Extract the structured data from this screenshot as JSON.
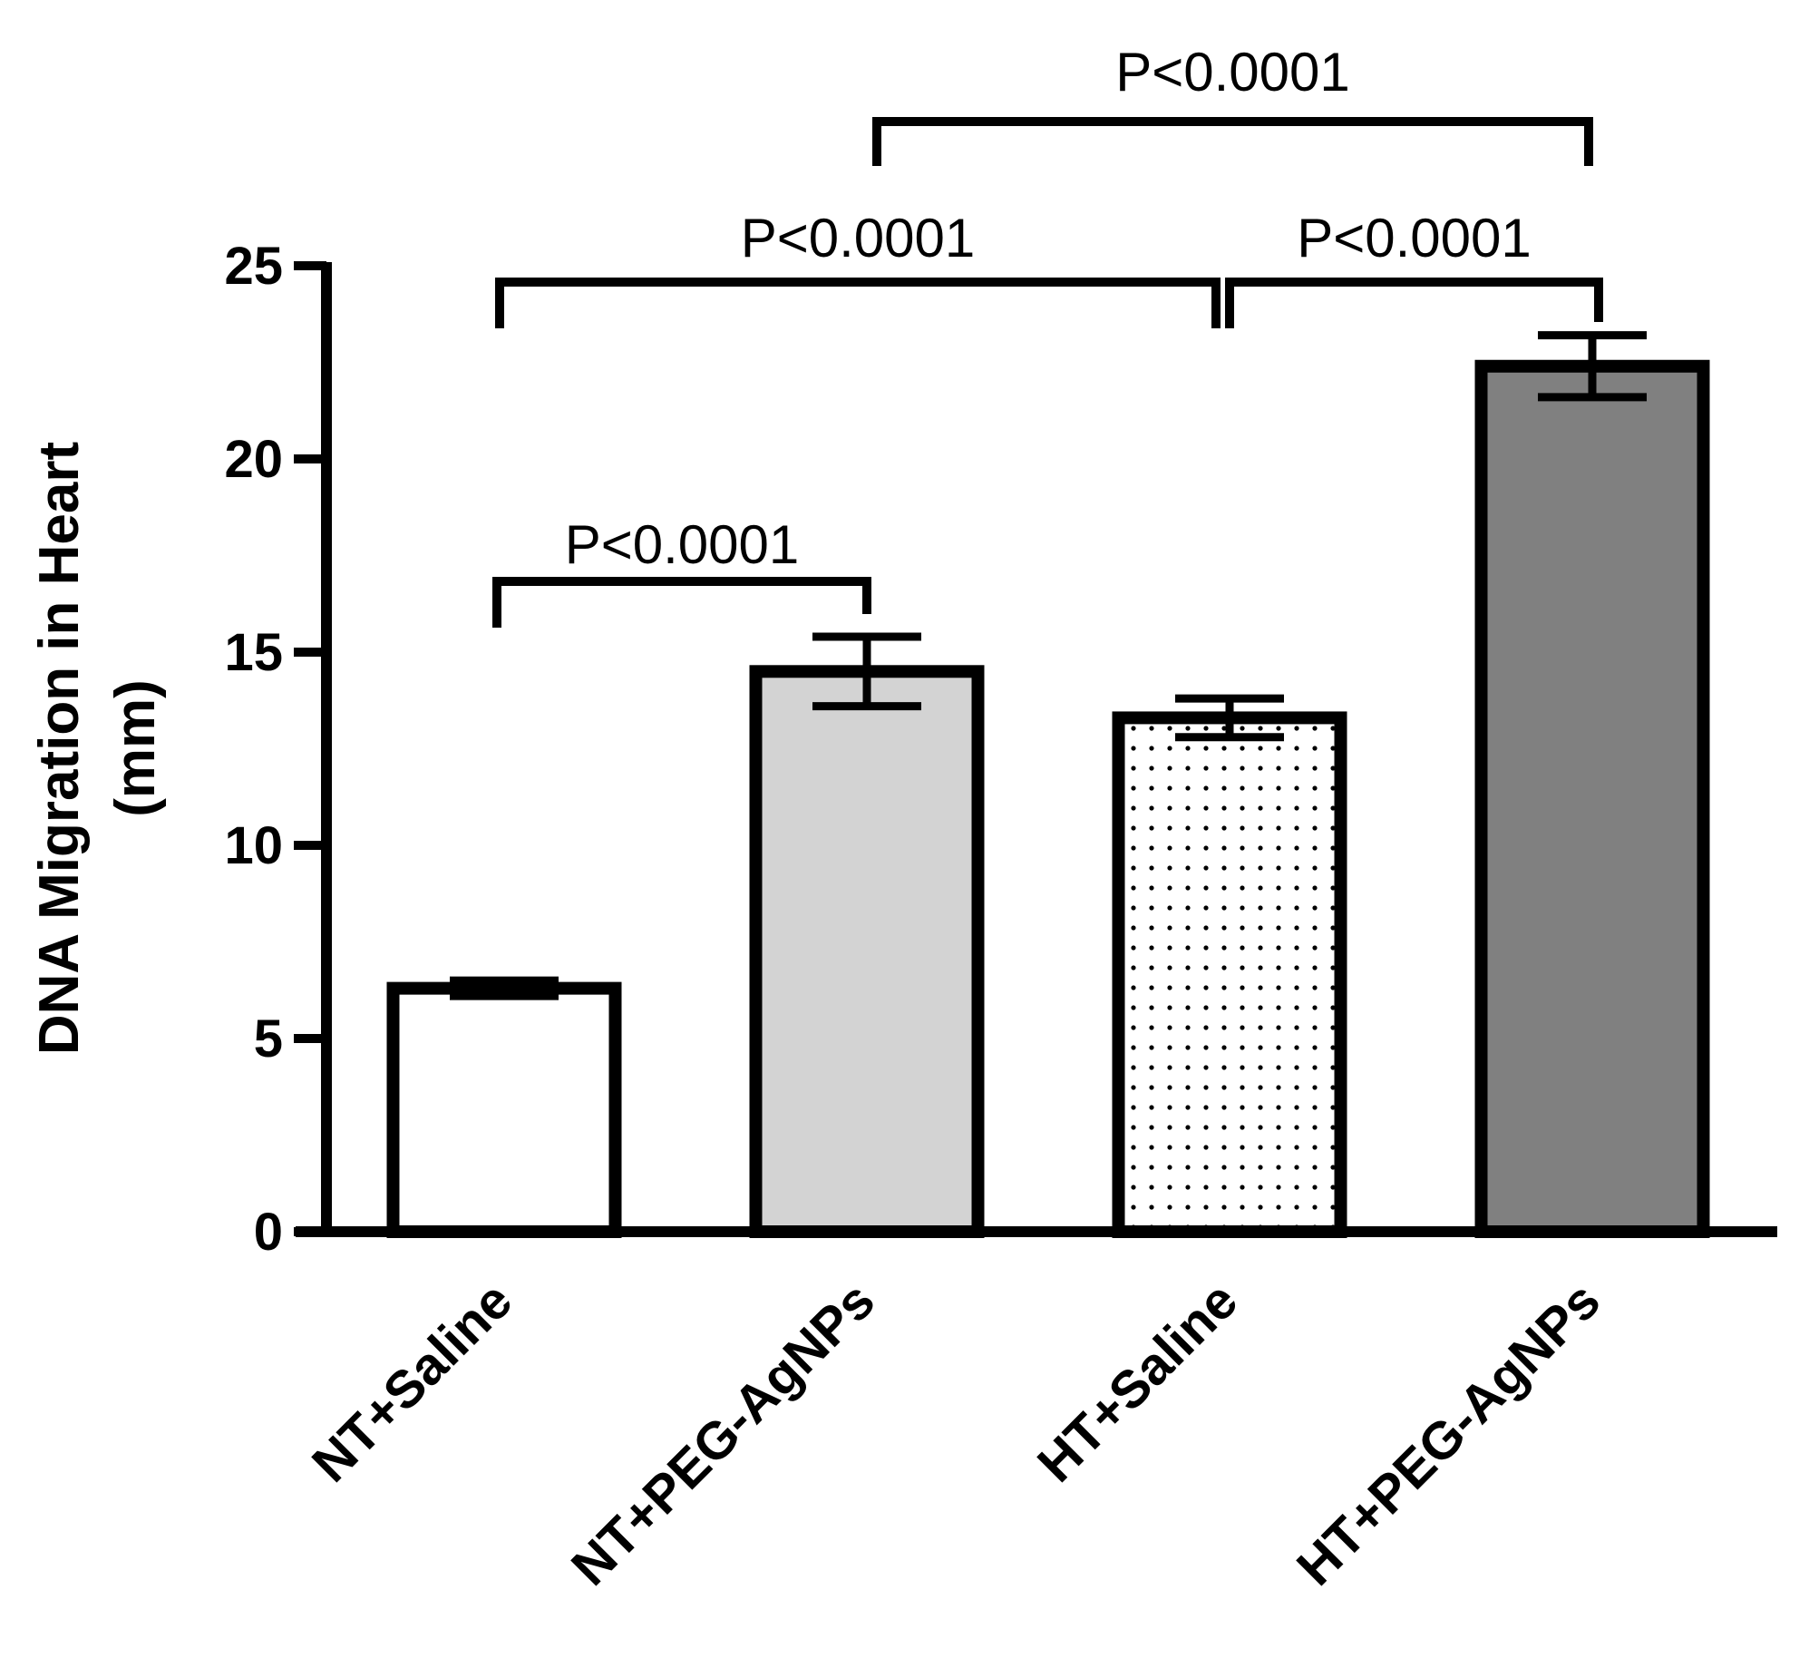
{
  "chart_data": {
    "type": "bar",
    "title": "",
    "xlabel": "",
    "ylabel_lines": [
      "DNA Migration in Heart",
      "(mm)"
    ],
    "categories": [
      "NT+Saline",
      "NT+PEG-AgNPs",
      "HT+Saline",
      "HT+PEG-AgNPs"
    ],
    "values": [
      6.3,
      14.5,
      13.3,
      22.4
    ],
    "errors": [
      0.2,
      0.9,
      0.5,
      0.8
    ],
    "fills": [
      "#ffffff",
      "#d3d3d3",
      "dotted",
      "#808080"
    ],
    "ylim": [
      0,
      25
    ],
    "yticks": [
      0,
      5,
      10,
      15,
      20,
      25
    ],
    "grid": false,
    "significance": [
      {
        "from": 0,
        "to": 1,
        "label": "P<0.0001"
      },
      {
        "from": 0,
        "to": 2,
        "label": "P<0.0001"
      },
      {
        "from": 2,
        "to": 3,
        "label": "P<0.0001"
      },
      {
        "from": 1,
        "to": 3,
        "label": "P<0.0001"
      }
    ]
  }
}
